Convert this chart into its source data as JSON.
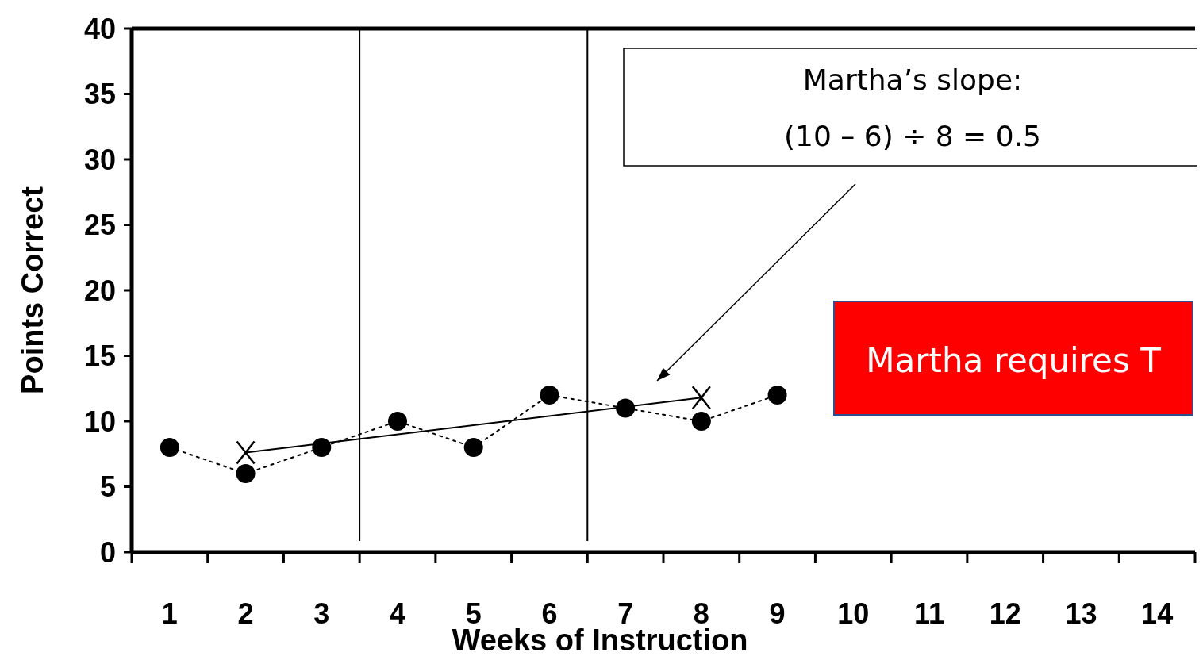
{
  "chart_data": {
    "type": "line",
    "xlabel": "Weeks of Instruction",
    "ylabel": "Points Correct",
    "x": [
      1,
      2,
      3,
      4,
      5,
      6,
      7,
      8,
      9
    ],
    "series": [
      {
        "color": "#000000",
        "marker": "circle",
        "line_style": "dotted",
        "values": [
          8,
          6,
          8,
          10,
          8,
          12,
          11,
          10,
          12
        ]
      },
      {
        "color": "#000000",
        "marker": "cross",
        "line_style": "solid",
        "x": [
          2,
          8
        ],
        "values": [
          7.6,
          11.8
        ]
      }
    ],
    "xlim": [
      0.5,
      14.5
    ],
    "xticks": [
      {
        "value": 0.5,
        "label": null
      },
      1,
      {
        "value": 1.5,
        "label": null
      },
      2,
      {
        "value": 2.5,
        "label": null
      },
      3,
      {
        "value": 3.5,
        "label": null
      },
      4,
      {
        "value": 4.5,
        "label": null
      },
      5,
      {
        "value": 5.5,
        "label": null
      },
      6,
      {
        "value": 6.5,
        "label": null
      },
      7,
      {
        "value": 7.5,
        "label": null
      },
      8,
      {
        "value": 8.5,
        "label": null
      },
      9,
      {
        "value": 9.5,
        "label": null
      },
      10,
      {
        "value": 10.5,
        "label": null
      },
      11,
      {
        "value": 11.5,
        "label": null
      },
      12,
      {
        "value": 12.5,
        "label": null
      },
      13,
      {
        "value": 13.5,
        "label": null
      },
      14,
      {
        "value": 14.5,
        "label": null
      }
    ],
    "ylim": [
      0,
      40
    ],
    "yticks": [
      0,
      5,
      10,
      15,
      20,
      25,
      30,
      35,
      40
    ],
    "ref_lines": [
      {
        "axis": "x",
        "value": 3.5,
        "color": "#000000"
      },
      {
        "axis": "x",
        "value": 6.5,
        "color": "#000000"
      }
    ],
    "annotations": [
      "Martha’s slope:",
      "(10 – 6) ÷ 8 = 0.5",
      "Martha requires T"
    ],
    "grid": false
  }
}
